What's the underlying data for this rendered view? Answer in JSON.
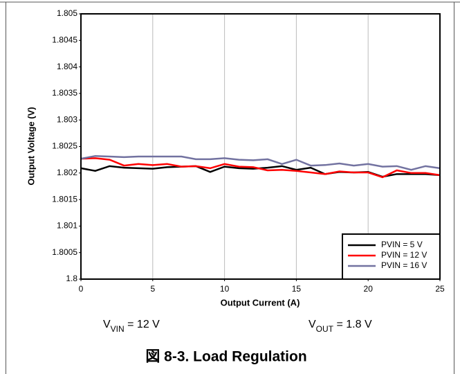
{
  "chart_data": {
    "type": "line",
    "caption": "図 8-3. Load Regulation",
    "annotations": [
      {
        "base": "V",
        "sub": "VIN",
        "rest": " = 12 V"
      },
      {
        "base": "V",
        "sub": "OUT",
        "rest": " = 1.8 V"
      }
    ],
    "x_label": "Output Current (A)",
    "y_label": "Output Voltage (V)",
    "x": [
      0,
      1,
      2,
      3,
      4,
      5,
      6,
      7,
      8,
      9,
      10,
      11,
      12,
      13,
      14,
      15,
      16,
      17,
      18,
      19,
      20,
      21,
      22,
      23,
      24,
      25
    ],
    "xlim": [
      0,
      25
    ],
    "xticks": [
      0,
      5,
      10,
      15,
      20,
      25
    ],
    "ylim": [
      1.8,
      1.805
    ],
    "yticks": [
      1.8,
      1.8005,
      1.801,
      1.8015,
      1.802,
      1.8025,
      1.803,
      1.8035,
      1.804,
      1.8045,
      1.805
    ],
    "grid": "x",
    "legend": "lower right",
    "series": [
      {
        "name": "PVIN = 5 V",
        "color": "#000000",
        "values": [
          1.80209,
          1.80204,
          1.80213,
          1.8021,
          1.80209,
          1.80208,
          1.80211,
          1.80212,
          1.80213,
          1.80202,
          1.80212,
          1.80209,
          1.80208,
          1.8021,
          1.80213,
          1.80206,
          1.8021,
          1.80198,
          1.80202,
          1.80201,
          1.80202,
          1.80193,
          1.80198,
          1.80198,
          1.80198,
          1.80196
        ]
      },
      {
        "name": "PVIN = 12 V",
        "color": "#ff0000",
        "values": [
          1.80227,
          1.80228,
          1.80225,
          1.80214,
          1.80217,
          1.80215,
          1.80217,
          1.80212,
          1.80213,
          1.80209,
          1.80217,
          1.80212,
          1.80211,
          1.80205,
          1.80206,
          1.80204,
          1.80201,
          1.80198,
          1.80203,
          1.80201,
          1.80201,
          1.80192,
          1.80205,
          1.802,
          1.802,
          1.80196
        ]
      },
      {
        "name": "PVIN = 16 V",
        "color": "#7272a0",
        "values": [
          1.80227,
          1.80232,
          1.80231,
          1.8023,
          1.80231,
          1.80231,
          1.80231,
          1.80231,
          1.80226,
          1.80226,
          1.80228,
          1.80225,
          1.80224,
          1.80226,
          1.80217,
          1.80225,
          1.80214,
          1.80215,
          1.80218,
          1.80214,
          1.80217,
          1.80212,
          1.80213,
          1.80206,
          1.80213,
          1.80209
        ]
      }
    ]
  }
}
